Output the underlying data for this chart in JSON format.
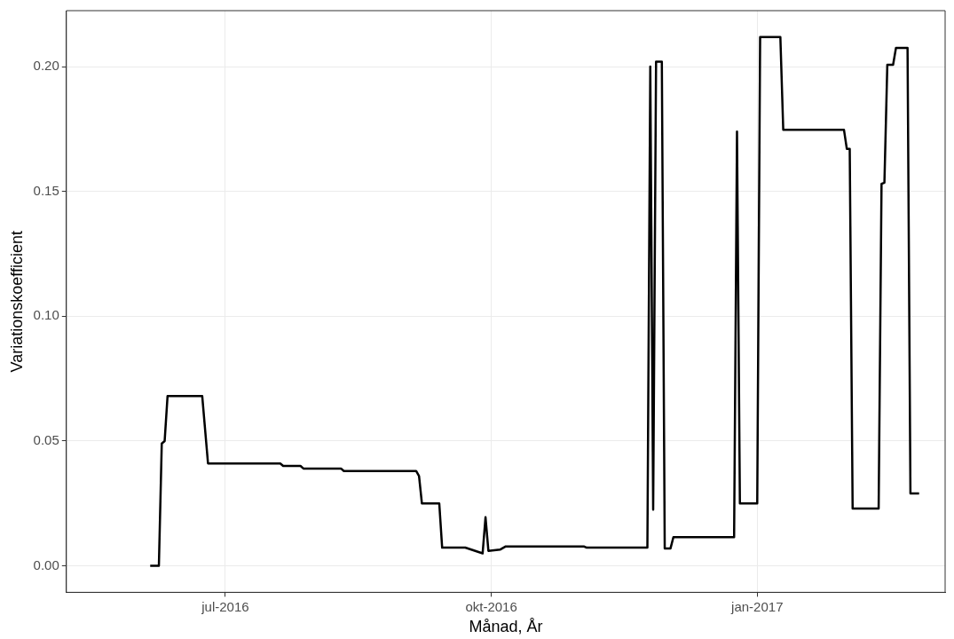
{
  "chart_data": {
    "type": "line",
    "xlabel": "Månad, År",
    "ylabel": "Variationskoefficient",
    "x": [
      "2016-06-05",
      "2016-06-08",
      "2016-06-09",
      "2016-06-10",
      "2016-06-11",
      "2016-06-23",
      "2016-06-25",
      "2016-07-20",
      "2016-07-21",
      "2016-07-27",
      "2016-07-28",
      "2016-08-10",
      "2016-08-11",
      "2016-09-05",
      "2016-09-06",
      "2016-09-07",
      "2016-09-13",
      "2016-09-14",
      "2016-09-22",
      "2016-09-28",
      "2016-09-29",
      "2016-09-30",
      "2016-10-04",
      "2016-10-06",
      "2016-11-02",
      "2016-11-03",
      "2016-11-24",
      "2016-11-25",
      "2016-11-26",
      "2016-11-27",
      "2016-11-29",
      "2016-11-30",
      "2016-12-02",
      "2016-12-03",
      "2016-12-24",
      "2016-12-25",
      "2016-12-26",
      "2017-01-01",
      "2017-01-02",
      "2017-01-09",
      "2017-01-10",
      "2017-01-31",
      "2017-02-01",
      "2017-02-02",
      "2017-02-03",
      "2017-02-12",
      "2017-02-13",
      "2017-02-14",
      "2017-02-15",
      "2017-02-17",
      "2017-02-18",
      "2017-02-22",
      "2017-02-23",
      "2017-02-26"
    ],
    "series": [
      {
        "color": "#000000",
        "values": [
          0.0,
          0.0,
          0.049,
          0.05,
          0.068,
          0.068,
          0.041,
          0.041,
          0.04,
          0.04,
          0.039,
          0.039,
          0.038,
          0.038,
          0.036,
          0.025,
          0.025,
          0.0073,
          0.0073,
          0.005,
          0.0195,
          0.006,
          0.0065,
          0.0078,
          0.0078,
          0.0073,
          0.0073,
          0.2,
          0.0225,
          0.202,
          0.202,
          0.007,
          0.007,
          0.0115,
          0.0115,
          0.174,
          0.025,
          0.025,
          0.2118,
          0.2118,
          0.1747,
          0.1747,
          0.167,
          0.167,
          0.023,
          0.023,
          0.153,
          0.1535,
          0.2007,
          0.2007,
          0.2075,
          0.2075,
          0.029,
          0.029
        ]
      }
    ],
    "xlim": [
      "2016-05-07",
      "2017-03-07"
    ],
    "xticks": [
      {
        "value": "2016-07-01",
        "label": "jul-2016"
      },
      {
        "value": "2016-10-01",
        "label": "okt-2016"
      },
      {
        "value": "2017-01-01",
        "label": "jan-2017"
      }
    ],
    "ylim": [
      -0.0106,
      0.2224
    ],
    "yticks": [
      {
        "value": 0,
        "label": "0.00"
      },
      {
        "value": 0.05,
        "label": "0.05"
      },
      {
        "value": 0.1,
        "label": "0.10"
      },
      {
        "value": 0.15,
        "label": "0.15"
      },
      {
        "value": 0.2,
        "label": "0.20"
      }
    ],
    "grid": true,
    "legend": false,
    "marker": "none",
    "line_style": "solid"
  }
}
